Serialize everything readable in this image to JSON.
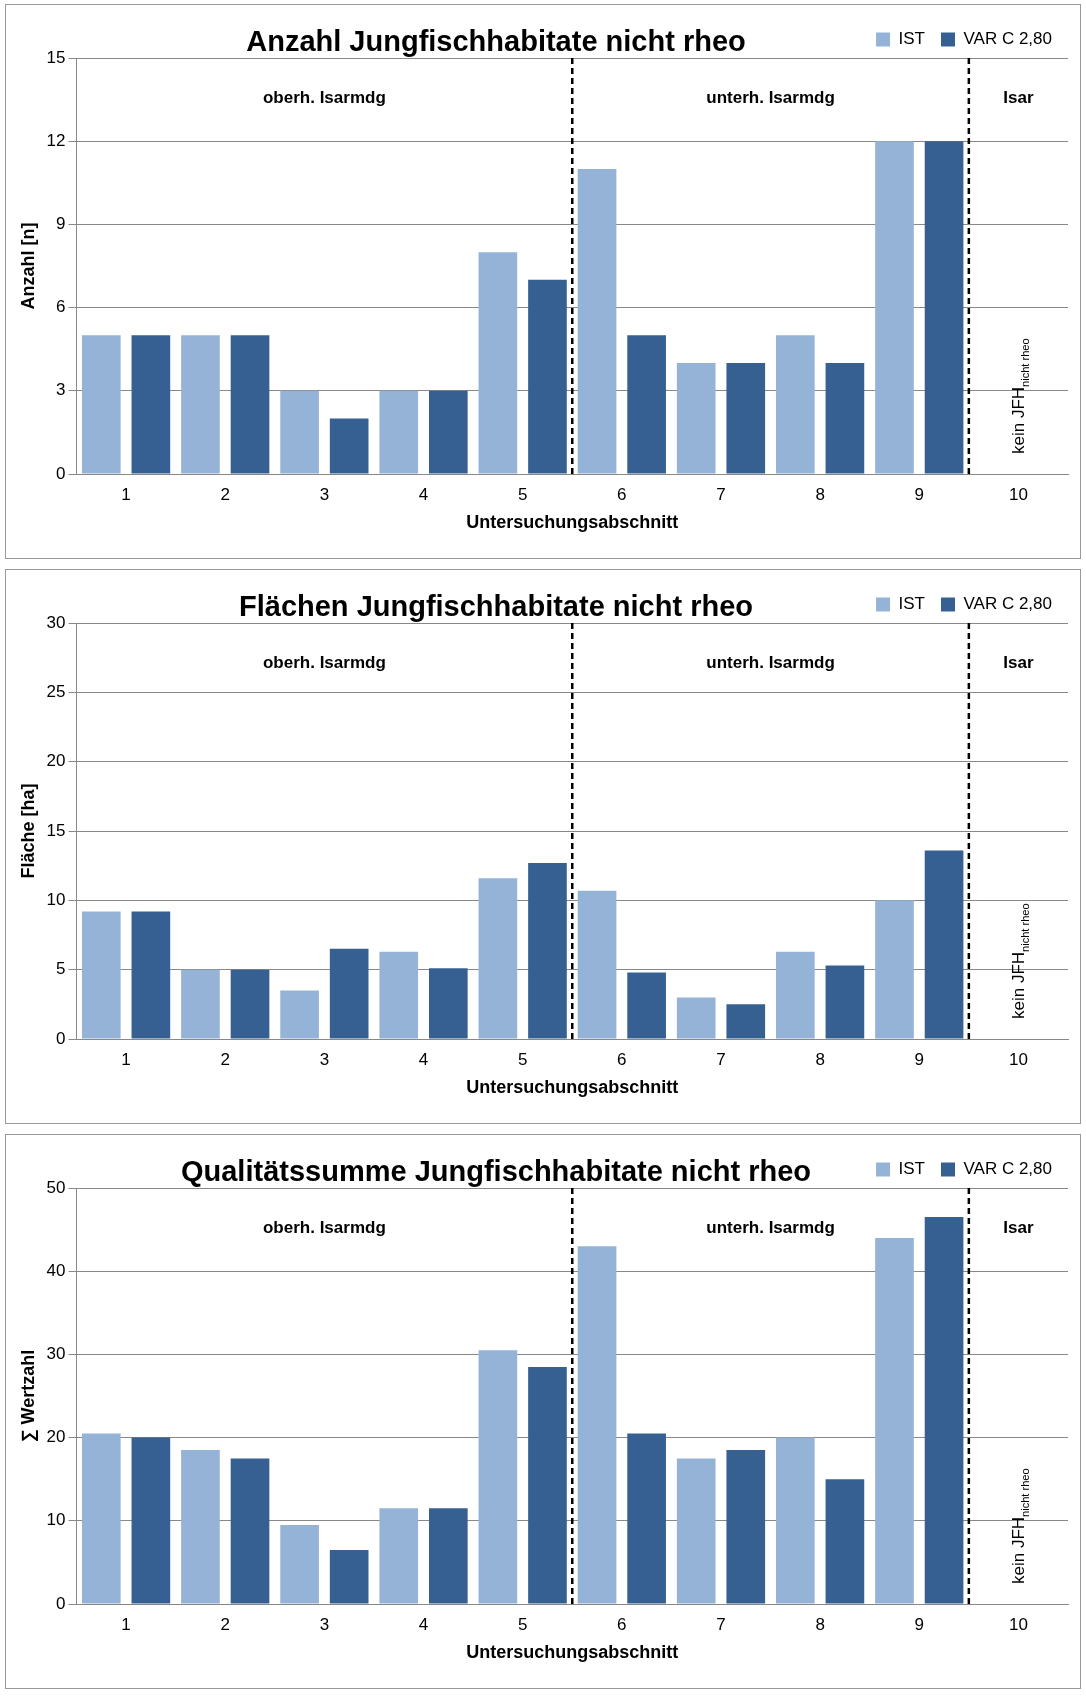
{
  "chart_data": [
    {
      "type": "bar",
      "title": "Anzahl Jungfischhabitate nicht rheo",
      "xlabel": "Untersuchungsabschnitt",
      "ylabel": "Anzahl [n]",
      "x": [
        1,
        2,
        3,
        4,
        5,
        6,
        7,
        8,
        9,
        10
      ],
      "xlim": [
        0.5,
        10.5
      ],
      "xticks": [
        1,
        2,
        3,
        4,
        5,
        6,
        7,
        8,
        9,
        10
      ],
      "ylim": [
        0,
        15
      ],
      "yticks": [
        0,
        3,
        6,
        9,
        12,
        15
      ],
      "grid": "y",
      "legend": "top right",
      "series": [
        {
          "name": "IST",
          "color": "#95b3d7",
          "values": [
            5,
            5,
            3,
            3,
            8,
            11,
            4,
            5,
            12,
            0
          ]
        },
        {
          "name": "VAR C 2,80",
          "color": "#366092",
          "values": [
            5,
            5,
            2,
            3,
            7,
            5,
            4,
            4,
            12,
            0
          ]
        }
      ],
      "ref_lines": [
        {
          "axis": "x",
          "value": 5.5,
          "line_style": "dashed",
          "color": "#000000"
        },
        {
          "axis": "x",
          "value": 9.5,
          "line_style": "dashed",
          "color": "#000000"
        }
      ],
      "annotations": [
        "oberh. Isarmdg",
        "unterh. Isarmdg",
        "Isar",
        "kein JFH$_{nicht rheo}$"
      ]
    },
    {
      "type": "bar",
      "title": "Flächen Jungfischhabitate nicht rheo",
      "xlabel": "Untersuchungsabschnitt",
      "ylabel": "Fläche [ha]",
      "x": [
        1,
        2,
        3,
        4,
        5,
        6,
        7,
        8,
        9,
        10
      ],
      "xlim": [
        0.5,
        10.5
      ],
      "xticks": [
        1,
        2,
        3,
        4,
        5,
        6,
        7,
        8,
        9,
        10
      ],
      "ylim": [
        0,
        30
      ],
      "yticks": [
        0,
        5,
        10,
        15,
        20,
        25,
        30
      ],
      "grid": "y",
      "legend": "top right",
      "series": [
        {
          "name": "IST",
          "color": "#95b3d7",
          "values": [
            9.2,
            5.0,
            3.5,
            6.3,
            11.6,
            10.7,
            3.0,
            6.3,
            10.0,
            0
          ]
        },
        {
          "name": "VAR C 2,80",
          "color": "#366092",
          "values": [
            9.2,
            5.0,
            6.5,
            5.1,
            12.7,
            4.8,
            2.5,
            5.3,
            13.6,
            0
          ]
        }
      ],
      "ref_lines": [
        {
          "axis": "x",
          "value": 5.5,
          "line_style": "dashed",
          "color": "#000000"
        },
        {
          "axis": "x",
          "value": 9.5,
          "line_style": "dashed",
          "color": "#000000"
        }
      ],
      "annotations": [
        "oberh. Isarmdg",
        "unterh. Isarmdg",
        "Isar",
        "kein JFH$_{nicht rheo}$"
      ]
    },
    {
      "type": "bar",
      "title": "Qualitätssumme Jungfischhabitate nicht rheo",
      "xlabel": "Untersuchungsabschnitt",
      "ylabel": "∑ Wertzahl",
      "x": [
        1,
        2,
        3,
        4,
        5,
        6,
        7,
        8,
        9,
        10
      ],
      "xlim": [
        0.5,
        10.5
      ],
      "xticks": [
        1,
        2,
        3,
        4,
        5,
        6,
        7,
        8,
        9,
        10
      ],
      "ylim": [
        0,
        50
      ],
      "yticks": [
        0,
        10,
        20,
        30,
        40,
        50
      ],
      "grid": "y",
      "legend": "top right",
      "series": [
        {
          "name": "IST",
          "color": "#95b3d7",
          "values": [
            20.5,
            18.5,
            9.5,
            11.5,
            30.5,
            43,
            17.5,
            20,
            44,
            0
          ]
        },
        {
          "name": "VAR C 2,80",
          "color": "#366092",
          "values": [
            20,
            17.5,
            6.5,
            11.5,
            28.5,
            20.5,
            18.5,
            15,
            46.5,
            0
          ]
        }
      ],
      "ref_lines": [
        {
          "axis": "x",
          "value": 5.5,
          "line_style": "dashed",
          "color": "#000000"
        },
        {
          "axis": "x",
          "value": 9.5,
          "line_style": "dashed",
          "color": "#000000"
        }
      ],
      "annotations": [
        "oberh. Isarmdg",
        "unterh. Isarmdg",
        "Isar",
        "kein JFH$_{nicht rheo}$"
      ]
    }
  ]
}
